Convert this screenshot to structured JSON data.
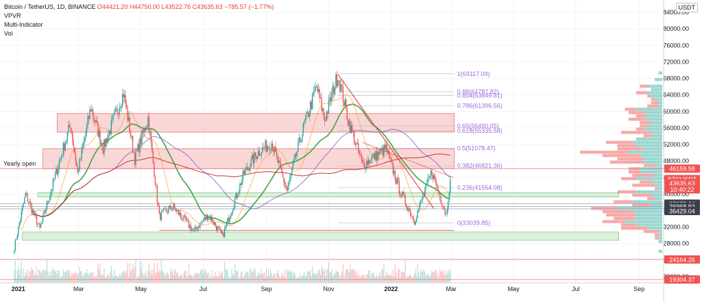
{
  "header": {
    "symbol": "Bitcoin / TetherUS, 1D, BINANCE",
    "ohlc": {
      "open": "O44421.20",
      "high": "H44750.00",
      "low": "L43522.76",
      "close": "C43635.63",
      "change": "−785.57 (−1.77%)"
    },
    "indicators": [
      "VPVR",
      "Multi-Indicator",
      "Vol"
    ],
    "currency": "USDT"
  },
  "colors": {
    "up": "#26a69a",
    "down": "#ef5350",
    "resistance_zone": "#f7c6c6",
    "support_zone": "#cdebd0",
    "fib": "#9c6bd6",
    "ma_green": "#43a047",
    "ma_red": "#c62828",
    "ma_purple": "#7e57c2",
    "ma_orange": "#fb8c00"
  },
  "chart_data": {
    "type": "candlestick",
    "title": "Bitcoin / TetherUS, 1D, BINANCE",
    "x_axis_labels": [
      "2021",
      "Mar",
      "May",
      "Jul",
      "Sep",
      "Nov",
      "2022",
      "Mar",
      "May",
      "Jul",
      "Sep"
    ],
    "x_axis_months": [
      "2021-01",
      "2021-03",
      "2021-05",
      "2021-07",
      "2021-09",
      "2021-11",
      "2022-01",
      "2022-03",
      "2022-05",
      "2022-07",
      "2022-09"
    ],
    "y_axis_ticks": [
      84000,
      80000,
      76000,
      72000,
      68000,
      64000,
      60000,
      56000,
      52000,
      48000,
      44000,
      40000,
      36000,
      32000,
      28000,
      24000,
      20000
    ],
    "ylim": [
      18500,
      87000
    ],
    "price_path": [
      [
        "2020-12-28",
        27000
      ],
      [
        "2021-01-08",
        40000
      ],
      [
        "2021-01-22",
        31500
      ],
      [
        "2021-02-08",
        46000
      ],
      [
        "2021-02-21",
        57000
      ],
      [
        "2021-02-28",
        45000
      ],
      [
        "2021-03-13",
        61000
      ],
      [
        "2021-03-25",
        51000
      ],
      [
        "2021-04-14",
        64500
      ],
      [
        "2021-04-25",
        48500
      ],
      [
        "2021-05-08",
        58500
      ],
      [
        "2021-05-19",
        34500
      ],
      [
        "2021-06-01",
        37000
      ],
      [
        "2021-06-22",
        31000
      ],
      [
        "2021-07-06",
        35000
      ],
      [
        "2021-07-20",
        29800
      ],
      [
        "2021-08-10",
        45000
      ],
      [
        "2021-08-23",
        50000
      ],
      [
        "2021-09-06",
        52500
      ],
      [
        "2021-09-21",
        40800
      ],
      [
        "2021-10-06",
        55000
      ],
      [
        "2021-10-20",
        66000
      ],
      [
        "2021-10-28",
        58000
      ],
      [
        "2021-11-10",
        69000
      ],
      [
        "2021-11-20",
        58000
      ],
      [
        "2021-12-04",
        47000
      ],
      [
        "2021-12-27",
        51000
      ],
      [
        "2022-01-10",
        40500
      ],
      [
        "2022-01-24",
        33500
      ],
      [
        "2022-02-10",
        45500
      ],
      [
        "2022-02-24",
        35000
      ],
      [
        "2022-02-28",
        43635.63
      ]
    ],
    "horizontal_levels": [
      {
        "label": "Yearly open",
        "value": 46159.58
      },
      {
        "label": "",
        "value": 37673.64
      },
      {
        "label": "",
        "value": 36968.92
      },
      {
        "label": "",
        "value": 36429.04
      },
      {
        "label": "",
        "value": 24164.26
      },
      {
        "label": "",
        "value": 19304.37
      }
    ],
    "zones": [
      {
        "type": "resistance",
        "from": 55000,
        "to": 59500,
        "x_start": "2021-02-08"
      },
      {
        "type": "resistance",
        "from": 46159.58,
        "to": 51000,
        "x_start": "2021-01-25"
      },
      {
        "type": "support",
        "from": 39300,
        "to": 40300,
        "x_start": "2021-01-20"
      },
      {
        "type": "support",
        "from": 28800,
        "to": 30800,
        "x_start": "2021-01-05"
      }
    ],
    "fib_levels": [
      {
        "label": "1(69117.09)",
        "value": 69117.09
      },
      {
        "label": "0.88(64787.82)",
        "value": 64787.82
      },
      {
        "label": "0.854(63849.81)",
        "value": 63849.81
      },
      {
        "label": "0.786(61396.56)",
        "value": 61396.56
      },
      {
        "label": "0.65(56490.05)",
        "value": 56490.05
      },
      {
        "label": "0.618(55335.58)",
        "value": 55335.58
      },
      {
        "label": "0.5(51078.47)",
        "value": 51078.47
      },
      {
        "label": "0.382(46821.36)",
        "value": 46821.36
      },
      {
        "label": "0.236(41554.08)",
        "value": 41554.08
      },
      {
        "label": "0(33039.85)",
        "value": 33039.85
      }
    ],
    "price_tags": [
      {
        "label": "46159.58",
        "value": 46159.58,
        "color": "#ef5350"
      },
      {
        "label": "BTCUSDT",
        "value": 43635.63,
        "color": "#ef5350"
      },
      {
        "label": "43635.63",
        "value": 42600,
        "color": "#ef5350"
      },
      {
        "label": "10:40:22",
        "value": 41150,
        "color": "#ef5350"
      },
      {
        "label": "37673.64",
        "value": 37673.64,
        "color": "#3a3f4a"
      },
      {
        "label": "36968.92",
        "value": 36968.92,
        "color": "#3a3f4a"
      },
      {
        "label": "36429.04",
        "value": 35900,
        "color": "#3a3f4a"
      },
      {
        "label": "24164.26",
        "value": 24164.26,
        "color": "#ef5350"
      },
      {
        "label": "19304.37",
        "value": 19304.37,
        "color": "#ef5350"
      }
    ]
  }
}
